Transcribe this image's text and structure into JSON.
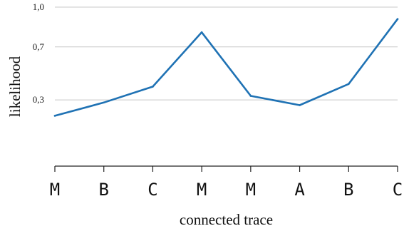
{
  "chart_data": {
    "type": "line",
    "categories": [
      "M",
      "B",
      "C",
      "M",
      "M",
      "A",
      "B",
      "C"
    ],
    "series": [
      {
        "values": [
          0.18,
          0.28,
          0.4,
          0.81,
          0.33,
          0.26,
          0.42,
          0.91
        ],
        "color": "#1f72b4"
      }
    ],
    "xlabel": "connected trace",
    "ylabel": "likelihood",
    "yticks": [
      {
        "value": 1.0,
        "label": "1,0"
      },
      {
        "value": 0.7,
        "label": "0,7"
      },
      {
        "value": 0.3,
        "label": "0,3"
      }
    ],
    "ylim": [
      -0.2,
      1.0
    ],
    "grid": true,
    "legend": "none"
  }
}
